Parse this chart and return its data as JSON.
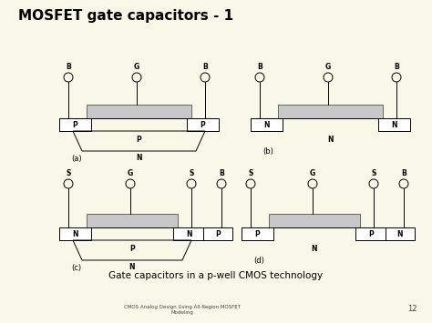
{
  "title": "MOSFET gate capacitors - 1",
  "subtitle": "Gate capacitors in a p-well CMOS technology",
  "footer": "CMOS Analog Design Using All-Region MOSFET\nModeling",
  "page_number": "12",
  "bg_color": "#f8f8e8",
  "gate_fill": "#c8c8c8",
  "gate_edge": "#666666"
}
